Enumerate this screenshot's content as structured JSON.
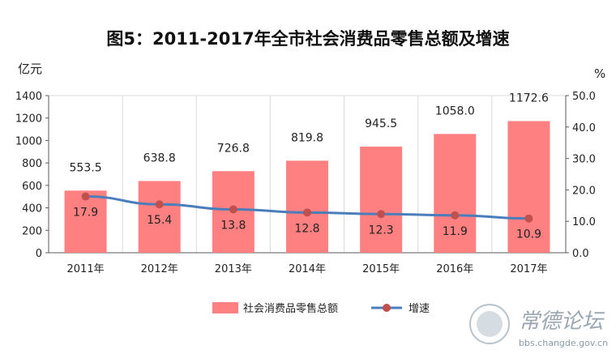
{
  "watermark": {
    "site_name": "常德论坛",
    "url": "bbs.changde.gov.cn"
  },
  "chart_data": {
    "type": "bar",
    "title": "图5：2011-2017年全市社会消费品零售总额及增速",
    "categories": [
      "2011年",
      "2012年",
      "2013年",
      "2014年",
      "2015年",
      "2016年",
      "2017年"
    ],
    "series": [
      {
        "name": "社会消费品零售总额",
        "type": "bar",
        "axis": "left",
        "color": "#ff8080",
        "values": [
          553.5,
          638.8,
          726.8,
          819.8,
          945.5,
          1058.0,
          1172.6
        ],
        "labels": [
          "553.5",
          "638.8",
          "726.8",
          "819.8",
          "945.5",
          "1058.0",
          "1172.6"
        ]
      },
      {
        "name": "增速",
        "type": "line",
        "axis": "right",
        "color": "#4a7ebb",
        "marker_color": "#c0504d",
        "values": [
          17.9,
          15.4,
          13.8,
          12.8,
          12.3,
          11.9,
          10.9
        ],
        "labels": [
          "17.9",
          "15.4",
          "13.8",
          "12.8",
          "12.3",
          "11.9",
          "10.9"
        ]
      }
    ],
    "left_axis": {
      "unit": "亿元",
      "range": [
        0,
        1400
      ],
      "ticks": [
        "0",
        "200",
        "400",
        "600",
        "800",
        "1000",
        "1200",
        "1400"
      ]
    },
    "right_axis": {
      "unit": "%",
      "range": [
        0,
        50
      ],
      "ticks": [
        "0.0",
        "10.0",
        "20.0",
        "30.0",
        "40.0",
        "50.0"
      ]
    },
    "grid": "vertical",
    "legend_position": "bottom"
  }
}
